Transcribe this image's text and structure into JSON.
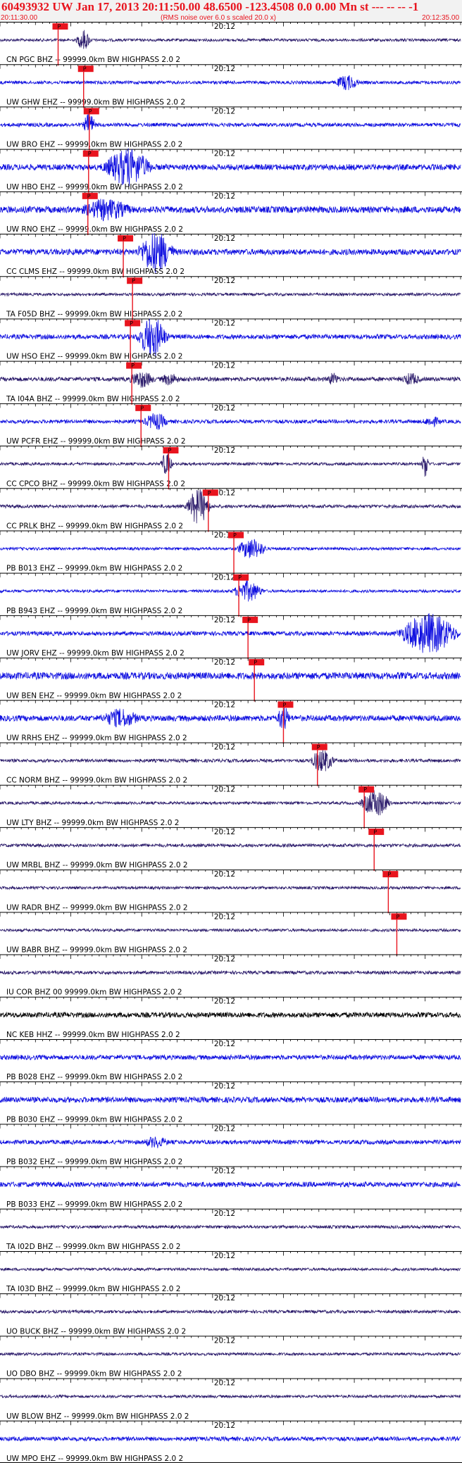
{
  "header": {
    "title": "60493932 UW Jan 17, 2013 20:11:50.00   48.6500 -123.4508  0.0 0.00 Mn st --- -- --  -1",
    "subtitle": "(RMS noise over 6.0 s scaled 20.0 x)",
    "time_start": "20:11:30.00",
    "time_end": "20:12:35.00"
  },
  "colors": {
    "blue_trace": "#1010e0",
    "dark_trace": "#2a1a6a",
    "black_trace": "#000000",
    "pick_line": "#e8141e",
    "pick_box": "#e8141e",
    "title_red": "#e8141e"
  },
  "chart_data": {
    "type": "line",
    "x_range_seconds": [
      0,
      65
    ],
    "minute_marker": {
      "label": "20:12",
      "seconds": 30
    },
    "pick_label": "P",
    "traces": [
      {
        "label": "CN PGC BHZ -- 99999.0km BW  HIGHPASS  2.0  2",
        "color": "dark",
        "pick_s": 8.2,
        "noise": 0.12,
        "bursts": [
          [
            11.8,
            1.2,
            0.8
          ]
        ]
      },
      {
        "label": "UW GHW EHZ -- 99999.0km BW  HIGHPASS  2.0  2",
        "color": "blue",
        "pick_s": 11.8,
        "noise": 0.14,
        "bursts": [
          [
            49.0,
            2.0,
            0.55
          ]
        ]
      },
      {
        "label": "UW BRO EHZ -- 99999.0km BW  HIGHPASS  2.0  2",
        "color": "blue",
        "pick_s": 12.6,
        "noise": 0.16,
        "bursts": [
          [
            12.6,
            1.0,
            0.9
          ]
        ]
      },
      {
        "label": "UW HBO EHZ -- 99999.0km BW  HIGHPASS  2.0  2",
        "color": "blue",
        "pick_s": 12.5,
        "noise": 0.25,
        "bursts": [
          [
            18.0,
            4.0,
            1.4
          ]
        ]
      },
      {
        "label": "UW RNO EHZ -- 99999.0km BW  HIGHPASS  2.0  2",
        "color": "blue",
        "pick_s": 12.4,
        "noise": 0.28,
        "bursts": [
          [
            15.0,
            4.0,
            0.7
          ]
        ]
      },
      {
        "label": "CC CLMS EHZ -- 99999.0km BW  HIGHPASS  2.0  2",
        "color": "blue",
        "pick_s": 17.4,
        "noise": 0.25,
        "bursts": [
          [
            22.0,
            3.0,
            1.6
          ]
        ]
      },
      {
        "label": "TA F05D BHZ -- 99999.0km BW  HIGHPASS  2.0  2",
        "color": "dark",
        "pick_s": 18.7,
        "noise": 0.12,
        "bursts": []
      },
      {
        "label": "UW HSO EHZ -- 99999.0km BW  HIGHPASS  2.0  2",
        "color": "blue",
        "pick_s": 18.4,
        "noise": 0.2,
        "bursts": [
          [
            21.5,
            2.5,
            1.6
          ]
        ]
      },
      {
        "label": "TA I04A BHZ -- 99999.0km BW  HIGHPASS  2.0  2",
        "color": "dark",
        "pick_s": 18.6,
        "noise": 0.18,
        "bursts": [
          [
            20.0,
            2.0,
            0.6
          ],
          [
            24.0,
            1.5,
            0.4
          ],
          [
            47.0,
            1.0,
            0.4
          ],
          [
            58.0,
            1.5,
            0.4
          ]
        ]
      },
      {
        "label": "UW PCFR EHZ -- 99999.0km BW  HIGHPASS  2.0  2",
        "color": "blue",
        "pick_s": 19.9,
        "noise": 0.16,
        "bursts": [
          [
            22.0,
            2.0,
            0.6
          ],
          [
            61.0,
            1.5,
            0.3
          ]
        ]
      },
      {
        "label": "CC CPCO BHZ -- 99999.0km BW  HIGHPASS  2.0  2",
        "color": "dark",
        "pick_s": 23.8,
        "noise": 0.12,
        "bursts": [
          [
            23.5,
            1.0,
            0.9
          ],
          [
            60.0,
            0.6,
            1.1
          ]
        ]
      },
      {
        "label": "CC PRLK BHZ -- 99999.0km BW  HIGHPASS  2.0  2",
        "color": "dark",
        "pick_s": 29.4,
        "noise": 0.14,
        "bursts": [
          [
            28.0,
            2.0,
            1.4
          ]
        ]
      },
      {
        "label": "PB B013 EHZ -- 99999.0km BW  HIGHPASS  2.0  2",
        "color": "blue",
        "pick_s": 33.0,
        "noise": 0.12,
        "bursts": [
          [
            35.5,
            2.5,
            0.8
          ]
        ]
      },
      {
        "label": "PB B943 EHZ -- 99999.0km BW  HIGHPASS  2.0  2",
        "color": "blue",
        "pick_s": 33.7,
        "noise": 0.12,
        "bursts": [
          [
            35.0,
            2.5,
            0.8
          ]
        ]
      },
      {
        "label": "UW JORV EHZ -- 99999.0km BW  HIGHPASS  2.0  2",
        "color": "blue",
        "pick_s": 35.0,
        "noise": 0.18,
        "bursts": [
          [
            60.5,
            5.0,
            1.6
          ]
        ]
      },
      {
        "label": "UW BEN EHZ -- 99999.0km BW  HIGHPASS  2.0  2",
        "color": "blue",
        "pick_s": 35.9,
        "noise": 0.3,
        "bursts": []
      },
      {
        "label": "UW RRHS EHZ -- 99999.0km BW  HIGHPASS  2.0  2",
        "color": "blue",
        "pick_s": 40.0,
        "noise": 0.25,
        "bursts": [
          [
            17.0,
            3.0,
            0.6
          ],
          [
            40.0,
            1.0,
            0.9
          ]
        ]
      },
      {
        "label": "CC NORM BHZ -- 99999.0km BW  HIGHPASS  2.0  2",
        "color": "dark",
        "pick_s": 44.8,
        "noise": 0.14,
        "bursts": [
          [
            45.5,
            2.0,
            0.9
          ]
        ]
      },
      {
        "label": "UW LTY BHZ -- 99999.0km BW  HIGHPASS  2.0  2",
        "color": "dark",
        "pick_s": 51.4,
        "noise": 0.12,
        "bursts": [
          [
            53.0,
            2.5,
            1.1
          ]
        ]
      },
      {
        "label": "UW MRBL BHZ -- 99999.0km BW  HIGHPASS  2.0  2",
        "color": "dark",
        "pick_s": 52.8,
        "noise": 0.14,
        "bursts": []
      },
      {
        "label": "UW RADR BHZ -- 99999.0km BW  HIGHPASS  2.0  2",
        "color": "dark",
        "pick_s": 54.8,
        "noise": 0.12,
        "bursts": []
      },
      {
        "label": "UW BABR BHZ -- 99999.0km BW  HIGHPASS  2.0  2",
        "color": "dark",
        "pick_s": 56.0,
        "noise": 0.12,
        "bursts": []
      },
      {
        "label": "IU COR BHZ 00 99999.0km BW  HIGHPASS  2.0  2",
        "color": "dark",
        "pick_s": null,
        "noise": 0.14,
        "bursts": []
      },
      {
        "label": "NC KEB HHZ -- 99999.0km BW  HIGHPASS  2.0  2",
        "color": "black",
        "pick_s": null,
        "noise": 0.22,
        "bursts": []
      },
      {
        "label": "PB B028 EHZ -- 99999.0km BW  HIGHPASS  2.0  2",
        "color": "blue",
        "pick_s": null,
        "noise": 0.2,
        "bursts": []
      },
      {
        "label": "PB B030 EHZ -- 99999.0km BW  HIGHPASS  2.0  2",
        "color": "blue",
        "pick_s": null,
        "noise": 0.24,
        "bursts": []
      },
      {
        "label": "PB B032 EHZ -- 99999.0km BW  HIGHPASS  2.0  2",
        "color": "blue",
        "pick_s": null,
        "noise": 0.18,
        "bursts": [
          [
            22.0,
            2.0,
            0.35
          ]
        ]
      },
      {
        "label": "PB B033 EHZ -- 99999.0km BW  HIGHPASS  2.0  2",
        "color": "blue",
        "pick_s": null,
        "noise": 0.22,
        "bursts": []
      },
      {
        "label": "TA I02D BHZ -- 99999.0km BW  HIGHPASS  2.0  2",
        "color": "dark",
        "pick_s": null,
        "noise": 0.13,
        "bursts": []
      },
      {
        "label": "TA I03D BHZ -- 99999.0km BW  HIGHPASS  2.0  2",
        "color": "dark",
        "pick_s": null,
        "noise": 0.12,
        "bursts": []
      },
      {
        "label": "UO BUCK BHZ -- 99999.0km BW  HIGHPASS  2.0  2",
        "color": "dark",
        "pick_s": null,
        "noise": 0.13,
        "bursts": []
      },
      {
        "label": "UO DBO BHZ -- 99999.0km BW  HIGHPASS  2.0  2",
        "color": "dark",
        "pick_s": null,
        "noise": 0.12,
        "bursts": []
      },
      {
        "label": "UW BLOW BHZ -- 99999.0km BW  HIGHPASS  2.0  2",
        "color": "dark",
        "pick_s": null,
        "noise": 0.12,
        "bursts": []
      },
      {
        "label": "UW MPO EHZ -- 99999.0km BW  HIGHPASS  2.0  2",
        "color": "blue",
        "pick_s": null,
        "noise": 0.18,
        "bursts": []
      }
    ]
  }
}
